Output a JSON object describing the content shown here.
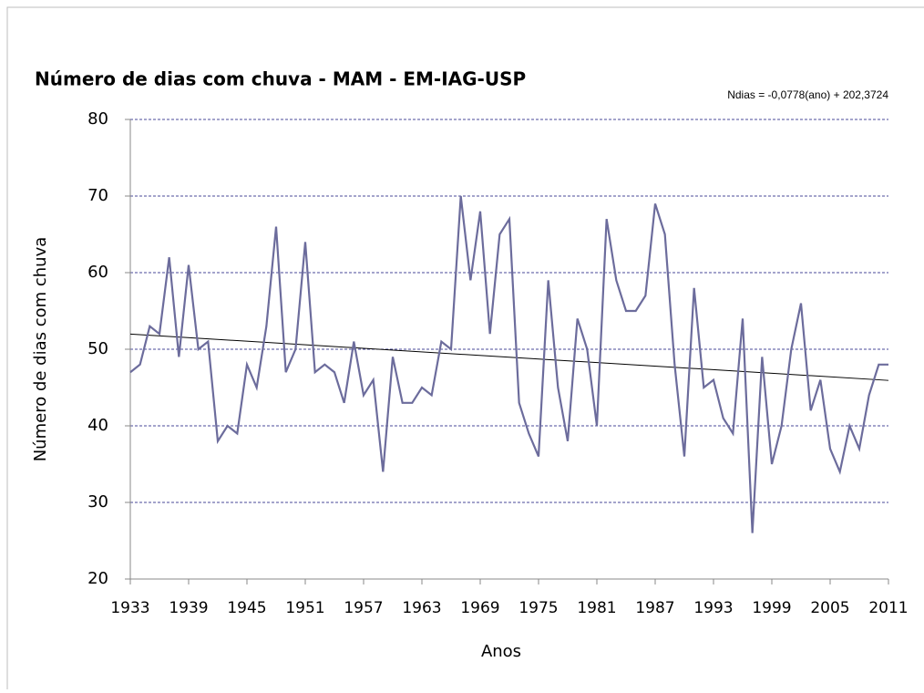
{
  "chart_data": {
    "type": "line",
    "title": "Número de dias com chuva - MAM - EM-IAG-USP",
    "annotation": "Ndias = -0,0778(ano)  + 202,3724",
    "x_label": "Anos",
    "y_label": "Número de dias com chuva",
    "x": [
      1933,
      1934,
      1935,
      1936,
      1937,
      1938,
      1939,
      1940,
      1941,
      1942,
      1943,
      1944,
      1945,
      1946,
      1947,
      1948,
      1949,
      1950,
      1951,
      1952,
      1953,
      1954,
      1955,
      1956,
      1957,
      1958,
      1959,
      1960,
      1961,
      1962,
      1963,
      1964,
      1965,
      1966,
      1967,
      1968,
      1969,
      1970,
      1971,
      1972,
      1973,
      1974,
      1975,
      1976,
      1977,
      1978,
      1979,
      1980,
      1981,
      1982,
      1983,
      1984,
      1985,
      1986,
      1987,
      1988,
      1989,
      1990,
      1991,
      1992,
      1993,
      1994,
      1995,
      1996,
      1997,
      1998,
      1999,
      2000,
      2001,
      2002,
      2003,
      2004,
      2005,
      2006,
      2007,
      2008,
      2009,
      2010,
      2011
    ],
    "series": [
      {
        "color": "#6c6c9c",
        "values": [
          47,
          48,
          53,
          52,
          62,
          49,
          61,
          50,
          51,
          38,
          40,
          39,
          48,
          45,
          53,
          66,
          47,
          50,
          64,
          47,
          48,
          47,
          43,
          51,
          44,
          46,
          34,
          49,
          43,
          43,
          45,
          44,
          51,
          50,
          70,
          59,
          68,
          52,
          65,
          67,
          43,
          39,
          36,
          59,
          45,
          38,
          54,
          50,
          40,
          67,
          59,
          55,
          55,
          57,
          69,
          65,
          48,
          36,
          58,
          45,
          46,
          41,
          39,
          54,
          26,
          49,
          35,
          40,
          50,
          56,
          42,
          46,
          37,
          34,
          40,
          37,
          44,
          48,
          48
        ]
      }
    ],
    "trend": {
      "x": [
        1933,
        2011
      ],
      "values": [
        51.98,
        45.93
      ],
      "color": "#000000"
    },
    "xlim": [
      1933,
      2011
    ],
    "xticks": [
      1933,
      1939,
      1945,
      1951,
      1957,
      1963,
      1969,
      1975,
      1981,
      1987,
      1993,
      1999,
      2005,
      2011
    ],
    "ylim": [
      20,
      80
    ],
    "yticks": [
      20,
      30,
      40,
      50,
      60,
      70,
      80
    ],
    "grid": true,
    "grid_color": "#4a4a9a"
  }
}
